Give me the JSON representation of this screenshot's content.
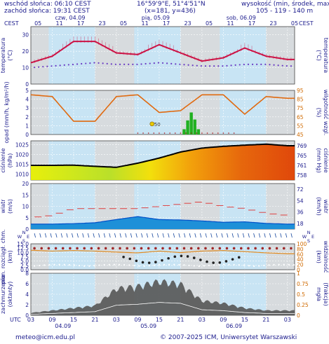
{
  "header": {
    "sunrise": "wschód słońca: 06:10 CEST",
    "sunset": "zachód słońca: 19:31 CEST",
    "coords": "16°59'9\"E, 51°4'51\"N",
    "grid": "(x=181, y=436)",
    "elev_label": "wysokość (min, środek, max)",
    "elev_values": "105 - 119 - 140 m"
  },
  "footer": {
    "email": "meteo@icm.edu.pl",
    "copyright": "© 2007-2025 ICM, Uniwersytet Warszawski"
  },
  "timeaxis": {
    "tz_left": "CEST",
    "tz_right": "CEST",
    "tz_bottom": "UTC",
    "top_hours": [
      "05",
      "11",
      "17",
      "23",
      "05",
      "11",
      "17",
      "23",
      "05",
      "11",
      "17",
      "23",
      "05"
    ],
    "bottom_hours": [
      "03",
      "09",
      "15",
      "21",
      "03",
      "09",
      "15",
      "21",
      "03",
      "09",
      "15",
      "21",
      "03"
    ],
    "top_days": [
      "czw, 04.09",
      "pią, 05.09",
      "sob, 06.09"
    ],
    "bottom_days": [
      "04.09",
      "05.09",
      "06.09"
    ]
  },
  "colors": {
    "panel_bg": "#c8e4f4",
    "night_band": "#d9d9d9",
    "temp_line": "#cc1144",
    "dew_dots": "#6a3cc4",
    "humidity_line": "#e06a10",
    "precip_bar": "#20b020",
    "pressure_line": "#000000",
    "wind_gust": "#e03030",
    "wind_mean": "#0050c8",
    "text_blue": "#1a1a8c"
  },
  "chart_data": [
    {
      "type": "line",
      "name": "temperature",
      "ylabel": "temperatura",
      "unit_left": "(°C)",
      "unit_right": "(°C)",
      "ylabel_right": "temperatura",
      "ylim": [
        0,
        35
      ],
      "yticks": [
        0,
        10,
        20,
        30
      ],
      "x_hours": [
        0,
        6,
        12,
        18,
        24,
        30,
        36,
        42,
        48,
        54,
        60,
        66,
        72
      ],
      "series": [
        {
          "values": [
            13,
            17,
            26,
            26,
            19,
            18,
            24,
            19,
            14,
            16,
            22,
            17,
            15
          ]
        },
        {
          "values": [
            10,
            11,
            12,
            13,
            12,
            12,
            13,
            12,
            11,
            11,
            12,
            12,
            11
          ]
        }
      ]
    },
    {
      "type": "bar",
      "name": "precipitation-humidity",
      "ylabel": "opad (mm/h, kg/m²/h)",
      "ylabel_right": "wilgotność wzgl.",
      "unit_right": "(%)",
      "ylim": [
        0,
        5
      ],
      "yticks": [
        0,
        1,
        2,
        3,
        4,
        5
      ],
      "ylim_right": [
        45,
        95
      ],
      "yticks_right": [
        45,
        55,
        65,
        75,
        85,
        95
      ],
      "annotation": "50",
      "precip_hours": [
        43,
        44,
        45,
        46,
        47
      ],
      "precip_values": [
        0.6,
        1.6,
        2.5,
        1.7,
        0.6
      ],
      "humidity_hours": [
        0,
        6,
        12,
        18,
        24,
        30,
        36,
        42,
        48,
        54,
        60,
        66,
        72
      ],
      "humidity_values": [
        90,
        88,
        60,
        60,
        88,
        90,
        70,
        72,
        90,
        90,
        68,
        88,
        86
      ]
    },
    {
      "type": "area",
      "name": "pressure",
      "ylabel": "ciśnienie",
      "unit_left": "(hPa)",
      "unit_right": "(mm Hg)",
      "ylabel_right": "ciśnienie",
      "ylim": [
        1007,
        1027
      ],
      "yticks": [
        1010,
        1015,
        1020,
        1025
      ],
      "yticks_right": [
        758,
        761,
        765,
        769
      ],
      "x_hours": [
        0,
        6,
        12,
        18,
        24,
        30,
        36,
        42,
        48,
        54,
        60,
        66,
        72
      ],
      "values": [
        1014.5,
        1014.5,
        1014.6,
        1014,
        1013.5,
        1015.6,
        1018.2,
        1021.3,
        1023.3,
        1024.2,
        1024.8,
        1025.3,
        1024.5
      ]
    },
    {
      "type": "area",
      "name": "wind",
      "ylabel": "wiatr",
      "unit_left": "(m/s)",
      "unit_right": "(km/h)",
      "ylabel_right": "wiatr",
      "ylim": [
        0,
        20
      ],
      "yticks": [
        0,
        5,
        10,
        15,
        20
      ],
      "yticks_right": [
        18,
        36,
        54,
        72
      ],
      "x_hours": [
        0,
        6,
        12,
        18,
        24,
        30,
        36,
        42,
        48,
        54,
        60,
        66,
        72
      ],
      "mean": [
        2.2,
        2.2,
        2.4,
        2.8,
        4.2,
        5.5,
        4.2,
        4,
        3.6,
        3,
        3.2,
        2.5,
        2.2
      ],
      "gust": [
        5,
        6,
        9,
        9,
        9,
        9,
        10,
        11,
        12,
        10,
        9,
        7,
        6
      ]
    },
    {
      "type": "scatter",
      "name": "cloud-base-visibility",
      "ylabel": "pion. rozciągł. chm.",
      "unit_left": "(km)",
      "ylabel_right": "widzialność",
      "unit_right": "(km)",
      "ylim": [
        0,
        15
      ],
      "yticks": [
        0,
        2.5,
        5,
        7.5,
        10,
        12.5,
        15
      ],
      "ytick_labels": [
        "0.0",
        "2.5",
        "5.0",
        "7.5",
        "10.0",
        "12.5",
        "15.0"
      ],
      "yticks_right": [
        0,
        20,
        40,
        60,
        80,
        100
      ],
      "visibility_hours": [
        0,
        6,
        12,
        18,
        24,
        30,
        36,
        42,
        48,
        54,
        60,
        66,
        72
      ],
      "visibility_values": [
        75,
        72,
        74,
        72,
        68,
        65,
        72,
        66,
        72,
        74,
        70,
        65,
        62
      ]
    },
    {
      "type": "area",
      "name": "cloud-cover",
      "ylabel": "zachmurzenie",
      "unit_left": "(oktanty)",
      "ylabel_right": "(frakcja)",
      "unit_right": "mgła",
      "ylim": [
        0,
        8
      ],
      "yticks": [
        0,
        2,
        4,
        6,
        8
      ],
      "yticks_right": [
        0,
        0.25,
        0.5,
        0.75,
        1
      ],
      "ytick_labels_right": [
        "0",
        "0.25",
        "0.5",
        "0.75",
        "1"
      ],
      "x_hours": [
        0,
        6,
        12,
        18,
        24,
        30,
        36,
        42,
        48,
        54,
        60,
        66,
        72
      ],
      "values": [
        0.5,
        1,
        1.5,
        2,
        5.5,
        6,
        7,
        6.5,
        3,
        2.5,
        1.5,
        1,
        1
      ]
    }
  ]
}
